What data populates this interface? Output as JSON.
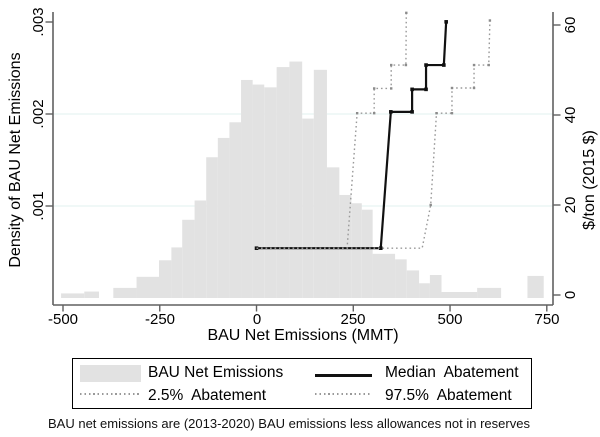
{
  "colors": {
    "histogram_fill": "#e2e2e2",
    "axis": "#606060",
    "gridline": "#e8f3f2",
    "median_line": "#111111",
    "dotted_line": "#999999",
    "dotted_marker": "#8c8c8c",
    "text": "#000000"
  },
  "axes": {
    "left": {
      "title": "Density of BAU Net Emissions",
      "tick_labels": [
        ".001",
        ".002",
        ".003"
      ]
    },
    "right": {
      "title": "$/ton (2015 $)",
      "tick_labels": [
        "0",
        "20",
        "40",
        "60"
      ]
    },
    "bottom": {
      "title": "BAU Net Emissions (MMT)",
      "tick_labels": [
        "-500",
        "-250",
        "0",
        "250",
        "500",
        "750"
      ]
    }
  },
  "legend": {
    "items": [
      {
        "label": "BAU Net Emissions",
        "swatch": "gray-fill"
      },
      {
        "label": "Median  Abatement",
        "swatch": "solid-line"
      },
      {
        "label": "2.5%  Abatement",
        "swatch": "dotted-line"
      },
      {
        "label": "97.5%  Abatement",
        "swatch": "dotted-line"
      }
    ]
  },
  "footnote": {
    "text": "BAU net emissions are (2013-2020) BAU emissions less allowances not in reserves"
  },
  "chart_data": {
    "type": "bar",
    "subtype": "histogram-with-step-lines",
    "x_axis": {
      "label": "BAU Net Emissions (MMT)",
      "range": [
        -500,
        750
      ],
      "ticks": [
        -500,
        -250,
        0,
        250,
        500,
        750
      ]
    },
    "y_left": {
      "label": "Density of BAU Net Emissions",
      "range": [
        0,
        0.003
      ],
      "ticks": [
        0.001,
        0.002,
        0.003
      ],
      "gridlines": [
        0.001,
        0.002
      ]
    },
    "y_right": {
      "label": "$/ton (2015 $)",
      "range": [
        0,
        60
      ],
      "ticks": [
        0,
        20,
        40,
        60
      ]
    },
    "histogram": {
      "name": "BAU Net Emissions",
      "axis": "left",
      "bins_mmt_density": [
        [
          -505,
          -445,
          5e-05
        ],
        [
          -445,
          -407,
          7e-05
        ],
        [
          -370,
          -310,
          0.00011
        ],
        [
          -310,
          -252,
          0.00023
        ],
        [
          -252,
          -220,
          0.00041
        ],
        [
          -220,
          -192,
          0.00055
        ],
        [
          -192,
          -160,
          0.00085
        ],
        [
          -160,
          -130,
          0.00106
        ],
        [
          -130,
          -100,
          0.00153
        ],
        [
          -100,
          -70,
          0.00174
        ],
        [
          -70,
          -40,
          0.00191
        ],
        [
          -40,
          -10,
          0.00237
        ],
        [
          -10,
          20,
          0.00232
        ],
        [
          20,
          52,
          0.00229
        ],
        [
          52,
          85,
          0.00251
        ],
        [
          85,
          118,
          0.00257
        ],
        [
          118,
          148,
          0.00195
        ],
        [
          148,
          182,
          0.00248
        ],
        [
          182,
          214,
          0.00142
        ],
        [
          214,
          245,
          0.00112
        ],
        [
          245,
          272,
          0.00103
        ],
        [
          272,
          300,
          0.00096
        ],
        [
          300,
          358,
          0.00048
        ],
        [
          358,
          388,
          0.00042
        ],
        [
          388,
          420,
          0.0003
        ],
        [
          420,
          448,
          0.00016
        ],
        [
          448,
          478,
          0.00025
        ],
        [
          478,
          570,
          6.5e-05
        ],
        [
          570,
          632,
          0.00011
        ],
        [
          700,
          742,
          0.00024
        ]
      ]
    },
    "series": [
      {
        "name": "Median Abatement",
        "axis": "right",
        "style": "solid",
        "points": [
          [
            0,
            10.4
          ],
          [
            321,
            10.4
          ],
          [
            347,
            40.7
          ],
          [
            402,
            40.7
          ],
          [
            402,
            45.7
          ],
          [
            438,
            45.7
          ],
          [
            438,
            51.1
          ],
          [
            484,
            51.1
          ],
          [
            490,
            60.7
          ]
        ]
      },
      {
        "name": "2.5% Abatement",
        "axis": "right",
        "style": "dotted",
        "points": [
          [
            0,
            10.4
          ],
          [
            234,
            10.4
          ],
          [
            260,
            40.4
          ],
          [
            304,
            40.4
          ],
          [
            304,
            45.9
          ],
          [
            348,
            45.9
          ],
          [
            348,
            51.1
          ],
          [
            386,
            51.1
          ],
          [
            387,
            62.7
          ]
        ]
      },
      {
        "name": "97.5% Abatement",
        "axis": "right",
        "style": "dotted",
        "points": [
          [
            0,
            10.4
          ],
          [
            428,
            10.4
          ],
          [
            450,
            20
          ],
          [
            465,
            40.4
          ],
          [
            505,
            40.4
          ],
          [
            505,
            46
          ],
          [
            562,
            46
          ],
          [
            562,
            51.1
          ],
          [
            600,
            51.1
          ],
          [
            603,
            61
          ]
        ]
      }
    ]
  }
}
